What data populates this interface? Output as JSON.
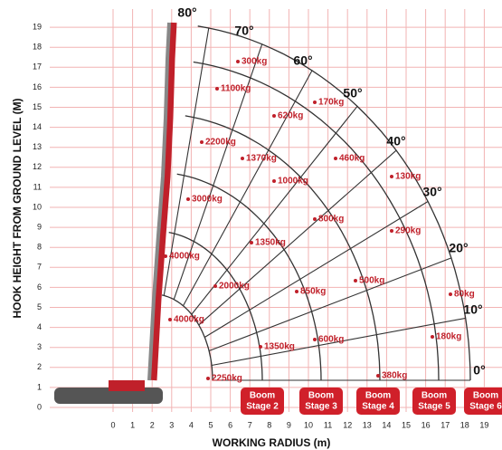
{
  "title_y": "HOOK HEIGHT FROM GROUND LEVEL (M)",
  "title_x": "WORKING RADIUS (m)",
  "xticks": [
    0,
    1,
    2,
    3,
    4,
    5,
    6,
    7,
    8,
    9,
    10,
    11,
    12,
    13,
    14,
    15,
    16,
    17,
    18,
    19
  ],
  "yticks": [
    0,
    1,
    2,
    3,
    4,
    5,
    6,
    7,
    8,
    9,
    10,
    11,
    12,
    13,
    14,
    15,
    16,
    17,
    18,
    19
  ],
  "angles": [
    "80°",
    "70°",
    "60°",
    "50°",
    "40°",
    "30°",
    "20°",
    "10°",
    "0°"
  ],
  "loads": [
    "300kg",
    "1100kg",
    "170kg",
    "620kg",
    "2200kg",
    "1370kg",
    "460kg",
    "130kg",
    "1000kg",
    "3000kg",
    "290kg",
    "800kg",
    "1350kg",
    "4000kg",
    "500kg",
    "2000kg",
    "850kg",
    "80kg",
    "4000kg",
    "180kg",
    "600kg",
    "1350kg",
    "2250kg",
    "380kg"
  ],
  "stages": [
    [
      "Boom",
      "Stage 2"
    ],
    [
      "Boom",
      "Stage 3"
    ],
    [
      "Boom",
      "Stage 4"
    ],
    [
      "Boom",
      "Stage 5"
    ],
    [
      "Boom",
      "Stage 6"
    ]
  ]
}
